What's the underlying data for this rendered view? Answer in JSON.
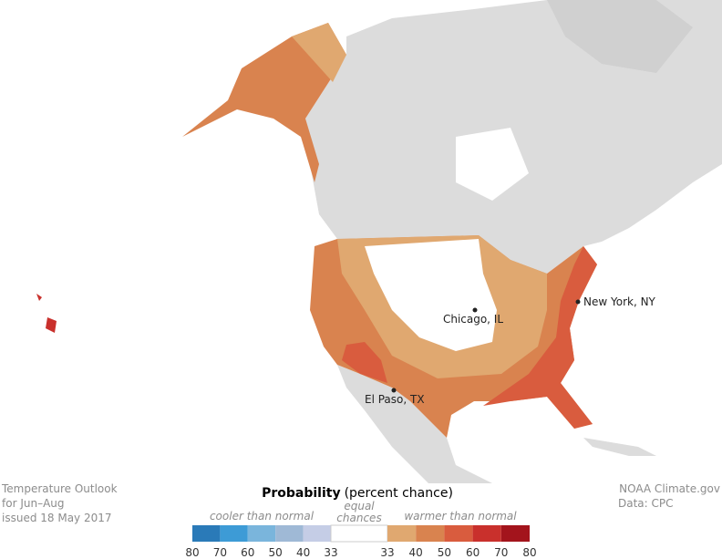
{
  "title_block": {
    "lines": [
      "Temperature Outlook",
      "for Jun–Aug",
      "issued 18 May 2017"
    ]
  },
  "credit": {
    "lines": [
      "NOAA Climate.gov",
      "Data: CPC"
    ]
  },
  "legend": {
    "title": "Probability",
    "subtitle": "(percent chance)",
    "cooler_label": "cooler than normal",
    "equal_label": [
      "equal",
      "chances"
    ],
    "warmer_label": "warmer than normal",
    "cooler": {
      "colors": [
        "#2a7ab8",
        "#3d9bd6",
        "#7ab5dc",
        "#9fb9d6",
        "#c5cde6"
      ],
      "ticks": [
        80,
        70,
        60,
        50,
        40,
        33
      ]
    },
    "equal_color": "#ffffff",
    "warmer": {
      "colors": [
        "#e0a870",
        "#d9834f",
        "#d95c3e",
        "#c9302c",
        "#a3141c"
      ],
      "ticks": [
        33,
        40,
        50,
        60,
        70,
        80
      ]
    }
  },
  "cities": [
    {
      "label": "New York, NY"
    },
    {
      "label": "Chicago, IL"
    },
    {
      "label": "El Paso, TX"
    }
  ]
}
